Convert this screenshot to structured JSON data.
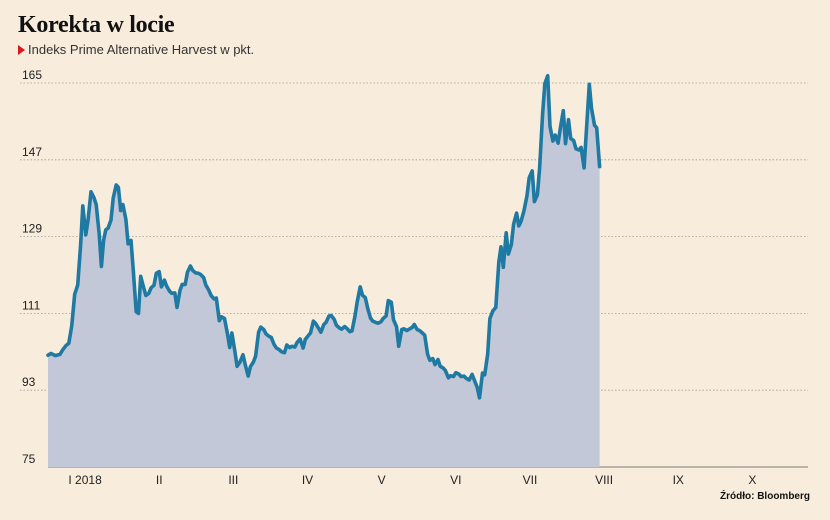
{
  "title": "Korekta w locie",
  "subtitle": "Indeks Prime Alternative Harvest w pkt.",
  "source": "Źródło: Bloomberg",
  "colors": {
    "line": "#1f7aa3",
    "area": "#c2c8d7",
    "grid": "#9a9a9a",
    "background": "#f8ecdd",
    "marker": "#e0181a"
  },
  "chart_data": {
    "type": "area",
    "title": "Korekta w locie",
    "subtitle": "Indeks Prime Alternative Harvest w pkt.",
    "xlabel": "",
    "ylabel": "",
    "ylim": [
      75,
      165
    ],
    "y_ticks": [
      75,
      93,
      111,
      129,
      147,
      165
    ],
    "grid": "horizontal dotted",
    "x_range": [
      0,
      10.25
    ],
    "x_ticks": [
      {
        "label": "I 2018",
        "at": 0.5
      },
      {
        "label": "II",
        "at": 1.5
      },
      {
        "label": "III",
        "at": 2.5
      },
      {
        "label": "IV",
        "at": 3.5
      },
      {
        "label": "V",
        "at": 4.5
      },
      {
        "label": "VI",
        "at": 5.5
      },
      {
        "label": "VII",
        "at": 6.5
      },
      {
        "label": "VIII",
        "at": 7.5
      },
      {
        "label": "IX",
        "at": 8.5
      },
      {
        "label": "X",
        "at": 9.5
      }
    ],
    "series": [
      {
        "name": "",
        "points": [
          [
            0.0,
            101.2
          ],
          [
            0.04,
            101.6
          ],
          [
            0.1,
            101.1
          ],
          [
            0.16,
            101.4
          ],
          [
            0.2,
            102.5
          ],
          [
            0.24,
            103.4
          ],
          [
            0.28,
            104.0
          ],
          [
            0.32,
            108.0
          ],
          [
            0.36,
            115.5
          ],
          [
            0.4,
            117.6
          ],
          [
            0.44,
            127.0
          ],
          [
            0.47,
            136.2
          ],
          [
            0.51,
            129.4
          ],
          [
            0.54,
            132.8
          ],
          [
            0.58,
            139.5
          ],
          [
            0.62,
            138.1
          ],
          [
            0.65,
            136.5
          ],
          [
            0.69,
            129.6
          ],
          [
            0.72,
            122.0
          ],
          [
            0.75,
            128.1
          ],
          [
            0.78,
            130.6
          ],
          [
            0.81,
            131.0
          ],
          [
            0.85,
            132.9
          ],
          [
            0.88,
            138.0
          ],
          [
            0.92,
            141.1
          ],
          [
            0.95,
            140.5
          ],
          [
            0.98,
            135.1
          ],
          [
            1.01,
            136.5
          ],
          [
            1.05,
            133.0
          ],
          [
            1.08,
            127.3
          ],
          [
            1.12,
            128.1
          ],
          [
            1.15,
            121.0
          ],
          [
            1.19,
            111.4
          ],
          [
            1.22,
            111.0
          ],
          [
            1.25,
            119.7
          ],
          [
            1.29,
            117.1
          ],
          [
            1.32,
            115.2
          ],
          [
            1.36,
            115.7
          ],
          [
            1.39,
            117.0
          ],
          [
            1.43,
            117.6
          ],
          [
            1.46,
            120.4
          ],
          [
            1.5,
            120.8
          ],
          [
            1.53,
            117.2
          ],
          [
            1.57,
            118.8
          ],
          [
            1.6,
            117.4
          ],
          [
            1.64,
            116.2
          ],
          [
            1.67,
            115.7
          ],
          [
            1.71,
            115.8
          ],
          [
            1.74,
            112.4
          ],
          [
            1.78,
            116.4
          ],
          [
            1.81,
            117.8
          ],
          [
            1.85,
            117.8
          ],
          [
            1.88,
            120.6
          ],
          [
            1.92,
            122.1
          ],
          [
            1.95,
            121.1
          ],
          [
            1.99,
            120.5
          ],
          [
            2.03,
            120.4
          ],
          [
            2.06,
            120.1
          ],
          [
            2.1,
            119.4
          ],
          [
            2.13,
            117.6
          ],
          [
            2.17,
            116.4
          ],
          [
            2.2,
            115.2
          ],
          [
            2.24,
            114.4
          ],
          [
            2.27,
            114.6
          ],
          [
            2.31,
            109.3
          ],
          [
            2.34,
            110.2
          ],
          [
            2.38,
            109.8
          ],
          [
            2.42,
            106.3
          ],
          [
            2.45,
            103.0
          ],
          [
            2.48,
            106.4
          ],
          [
            2.52,
            102.2
          ],
          [
            2.55,
            98.6
          ],
          [
            2.59,
            99.6
          ],
          [
            2.63,
            101.3
          ],
          [
            2.66,
            99.0
          ],
          [
            2.7,
            96.3
          ],
          [
            2.73,
            98.5
          ],
          [
            2.77,
            99.6
          ],
          [
            2.8,
            101.0
          ],
          [
            2.84,
            106.6
          ],
          [
            2.87,
            107.8
          ],
          [
            2.91,
            107.2
          ],
          [
            2.94,
            106.2
          ],
          [
            2.98,
            105.6
          ],
          [
            3.01,
            105.4
          ],
          [
            3.05,
            103.7
          ],
          [
            3.08,
            102.9
          ],
          [
            3.12,
            102.5
          ],
          [
            3.15,
            102.0
          ],
          [
            3.19,
            101.8
          ],
          [
            3.22,
            103.6
          ],
          [
            3.26,
            103.0
          ],
          [
            3.29,
            103.3
          ],
          [
            3.33,
            103.1
          ],
          [
            3.36,
            104.2
          ],
          [
            3.4,
            105.0
          ],
          [
            3.44,
            102.9
          ],
          [
            3.47,
            104.9
          ],
          [
            3.51,
            105.8
          ],
          [
            3.54,
            106.4
          ],
          [
            3.58,
            109.2
          ],
          [
            3.61,
            108.6
          ],
          [
            3.65,
            107.5
          ],
          [
            3.68,
            106.6
          ],
          [
            3.72,
            108.4
          ],
          [
            3.75,
            108.9
          ],
          [
            3.79,
            110.4
          ],
          [
            3.82,
            110.5
          ],
          [
            3.86,
            109.6
          ],
          [
            3.89,
            108.2
          ],
          [
            3.93,
            107.6
          ],
          [
            3.96,
            107.3
          ],
          [
            4.0,
            107.9
          ],
          [
            4.03,
            107.5
          ],
          [
            4.07,
            106.7
          ],
          [
            4.1,
            106.9
          ],
          [
            4.14,
            110.4
          ],
          [
            4.17,
            113.7
          ],
          [
            4.21,
            117.2
          ],
          [
            4.24,
            115.3
          ],
          [
            4.28,
            114.7
          ],
          [
            4.31,
            112.3
          ],
          [
            4.35,
            109.9
          ],
          [
            4.38,
            109.2
          ],
          [
            4.42,
            108.9
          ],
          [
            4.45,
            108.7
          ],
          [
            4.49,
            109.0
          ],
          [
            4.52,
            109.8
          ],
          [
            4.56,
            110.4
          ],
          [
            4.59,
            114.0
          ],
          [
            4.63,
            113.6
          ],
          [
            4.66,
            109.5
          ],
          [
            4.7,
            107.9
          ],
          [
            4.73,
            103.3
          ],
          [
            4.77,
            107.2
          ],
          [
            4.8,
            107.4
          ],
          [
            4.84,
            107.0
          ],
          [
            4.87,
            107.3
          ],
          [
            4.91,
            107.7
          ],
          [
            4.94,
            108.4
          ],
          [
            4.98,
            107.2
          ],
          [
            5.01,
            107.0
          ],
          [
            5.05,
            106.4
          ],
          [
            5.08,
            105.9
          ],
          [
            5.12,
            101.4
          ],
          [
            5.15,
            100.0
          ],
          [
            5.19,
            100.4
          ],
          [
            5.22,
            99.0
          ],
          [
            5.26,
            100.2
          ],
          [
            5.29,
            98.6
          ],
          [
            5.33,
            98.2
          ],
          [
            5.36,
            97.6
          ],
          [
            5.4,
            95.9
          ],
          [
            5.43,
            96.4
          ],
          [
            5.47,
            96.2
          ],
          [
            5.5,
            97.1
          ],
          [
            5.54,
            96.8
          ],
          [
            5.57,
            96.2
          ],
          [
            5.61,
            96.3
          ],
          [
            5.64,
            95.8
          ],
          [
            5.68,
            95.4
          ],
          [
            5.72,
            96.7
          ],
          [
            5.75,
            95.4
          ],
          [
            5.79,
            93.6
          ],
          [
            5.82,
            91.2
          ],
          [
            5.86,
            97.0
          ],
          [
            5.89,
            96.6
          ],
          [
            5.93,
            101.5
          ],
          [
            5.96,
            109.8
          ],
          [
            6.0,
            111.6
          ],
          [
            6.04,
            112.4
          ],
          [
            6.08,
            123.0
          ],
          [
            6.11,
            126.6
          ],
          [
            6.14,
            121.8
          ],
          [
            6.18,
            129.9
          ],
          [
            6.21,
            124.9
          ],
          [
            6.25,
            127.2
          ],
          [
            6.28,
            131.9
          ],
          [
            6.32,
            134.5
          ],
          [
            6.35,
            131.5
          ],
          [
            6.38,
            132.6
          ],
          [
            6.42,
            135.1
          ],
          [
            6.46,
            138.6
          ],
          [
            6.49,
            142.8
          ],
          [
            6.53,
            144.4
          ],
          [
            6.56,
            137.2
          ],
          [
            6.6,
            138.8
          ],
          [
            6.63,
            145.0
          ],
          [
            6.67,
            157.7
          ],
          [
            6.7,
            164.8
          ],
          [
            6.74,
            166.7
          ],
          [
            6.77,
            154.8
          ],
          [
            6.81,
            151.4
          ],
          [
            6.84,
            152.8
          ],
          [
            6.88,
            150.9
          ],
          [
            6.91,
            154.5
          ],
          [
            6.95,
            158.5
          ],
          [
            6.98,
            150.8
          ],
          [
            7.02,
            156.4
          ],
          [
            7.05,
            152.0
          ],
          [
            7.09,
            151.5
          ],
          [
            7.12,
            149.6
          ],
          [
            7.16,
            149.3
          ],
          [
            7.19,
            149.9
          ],
          [
            7.23,
            145.1
          ],
          [
            7.26,
            153.5
          ],
          [
            7.3,
            164.7
          ],
          [
            7.33,
            159.1
          ],
          [
            7.37,
            155.1
          ],
          [
            7.4,
            154.5
          ],
          [
            7.44,
            145.4
          ]
        ]
      }
    ]
  }
}
